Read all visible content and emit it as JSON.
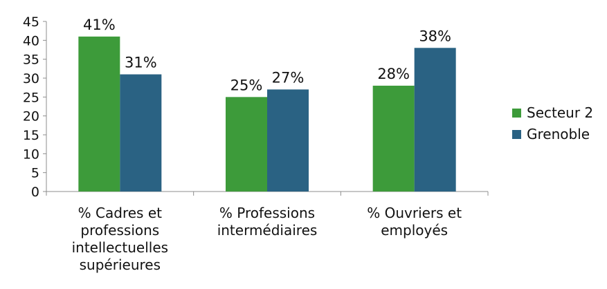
{
  "chart_data": {
    "type": "bar",
    "title": "",
    "xlabel": "",
    "ylabel": "",
    "ylim": [
      0,
      45
    ],
    "yticks": [
      0,
      5,
      10,
      15,
      20,
      25,
      30,
      35,
      40,
      45
    ],
    "grid": false,
    "legend_position": "right",
    "categories": [
      [
        "% Cadres et",
        "professions",
        "intellectuelles",
        "supérieures"
      ],
      [
        "% Professions",
        "intermédiaires"
      ],
      [
        "% Ouvriers et",
        "employés"
      ]
    ],
    "series": [
      {
        "name": "Secteur 2",
        "color": "#3d9b3a",
        "values": [
          41,
          25,
          28
        ],
        "labels": [
          "41%",
          "25%",
          "28%"
        ]
      },
      {
        "name": "Grenoble",
        "color": "#2a6283",
        "values": [
          31,
          27,
          38
        ],
        "labels": [
          "31%",
          "27%",
          "38%"
        ]
      }
    ]
  }
}
